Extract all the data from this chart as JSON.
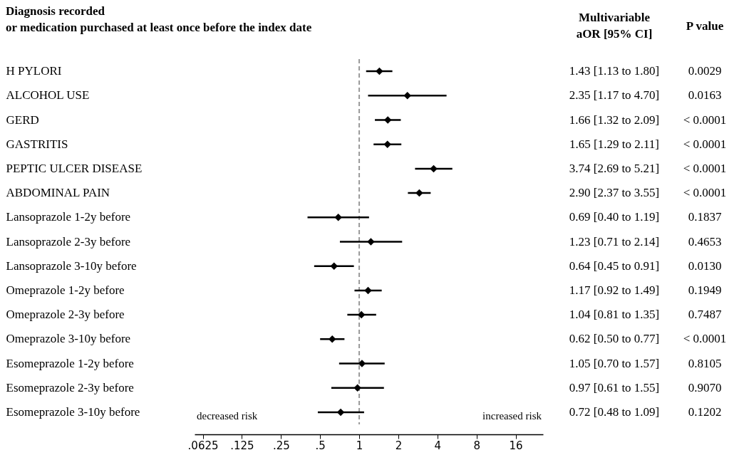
{
  "chart_data": {
    "type": "scatter",
    "orientation": "horizontal",
    "title": "Diagnosis recorded\nor medication purchased at least once before the index date",
    "categories": [
      "H PYLORI",
      "ALCOHOL USE",
      "GERD",
      "GASTRITIS",
      "PEPTIC ULCER DISEASE",
      "ABDOMINAL PAIN",
      "Lansoprazole 1-2y before",
      "Lansoprazole 2-3y before",
      "Lansoprazole 3-10y before",
      "Omeprazole 1-2y before",
      "Omeprazole 2-3y before",
      "Omeprazole 3-10y before",
      "Esomeprazole 1-2y before",
      "Esomeprazole 2-3y before",
      "Esomeprazole 3-10y before"
    ],
    "values": [
      1.43,
      2.35,
      1.66,
      1.65,
      3.74,
      2.9,
      0.69,
      1.23,
      0.64,
      1.17,
      1.04,
      0.62,
      1.05,
      0.97,
      0.72
    ],
    "errors": [
      [
        1.13,
        1.8
      ],
      [
        1.17,
        4.7
      ],
      [
        1.32,
        2.09
      ],
      [
        1.29,
        2.11
      ],
      [
        2.69,
        5.21
      ],
      [
        2.37,
        3.55
      ],
      [
        0.4,
        1.19
      ],
      [
        0.71,
        2.14
      ],
      [
        0.45,
        0.91
      ],
      [
        0.92,
        1.49
      ],
      [
        0.81,
        1.35
      ],
      [
        0.5,
        0.77
      ],
      [
        0.7,
        1.57
      ],
      [
        0.61,
        1.55
      ],
      [
        0.48,
        1.09
      ]
    ],
    "value_labels": [
      "1.43 [1.13 to 1.80]",
      "2.35 [1.17 to 4.70]",
      "1.66 [1.32 to 2.09]",
      "1.65 [1.29 to 2.11]",
      "3.74 [2.69 to 5.21]",
      "2.90 [2.37 to 3.55]",
      "0.69 [0.40 to 1.19]",
      "1.23 [0.71 to 2.14]",
      "0.64 [0.45 to 0.91]",
      "1.17 [0.92 to 1.49]",
      "1.04 [0.81 to 1.35]",
      "0.62 [0.50 to 0.77]",
      "1.05 [0.70 to 1.57]",
      "0.97 [0.61 to 1.55]",
      "0.72 [0.48 to 1.09]"
    ],
    "color": "#000000",
    "marker": "diamond",
    "log": "x",
    "xlim": [
      0.054,
      26
    ],
    "xticks": [
      {
        "value": 0.0625,
        "label": ".0625"
      },
      {
        "value": 0.125,
        "label": ".125"
      },
      {
        "value": 0.25,
        "label": ".25"
      },
      {
        "value": 0.5,
        "label": ".5"
      },
      1,
      2,
      4,
      8,
      16
    ],
    "ref_lines": [
      {
        "axis": "x",
        "value": 1,
        "label": null,
        "color": "#999999",
        "line_style": "dashed"
      }
    ],
    "annotations": [
      "Multivariable\naOR [95% CI]",
      "P value",
      "decreased risk",
      "increased risk",
      "0.0029",
      "0.0163",
      "< 0.0001",
      "< 0.0001",
      "< 0.0001",
      "< 0.0001",
      "0.1837",
      "0.4653",
      "0.0130",
      "0.1949",
      "0.7487",
      "< 0.0001",
      "0.8105",
      "0.9070",
      "0.1202"
    ]
  }
}
